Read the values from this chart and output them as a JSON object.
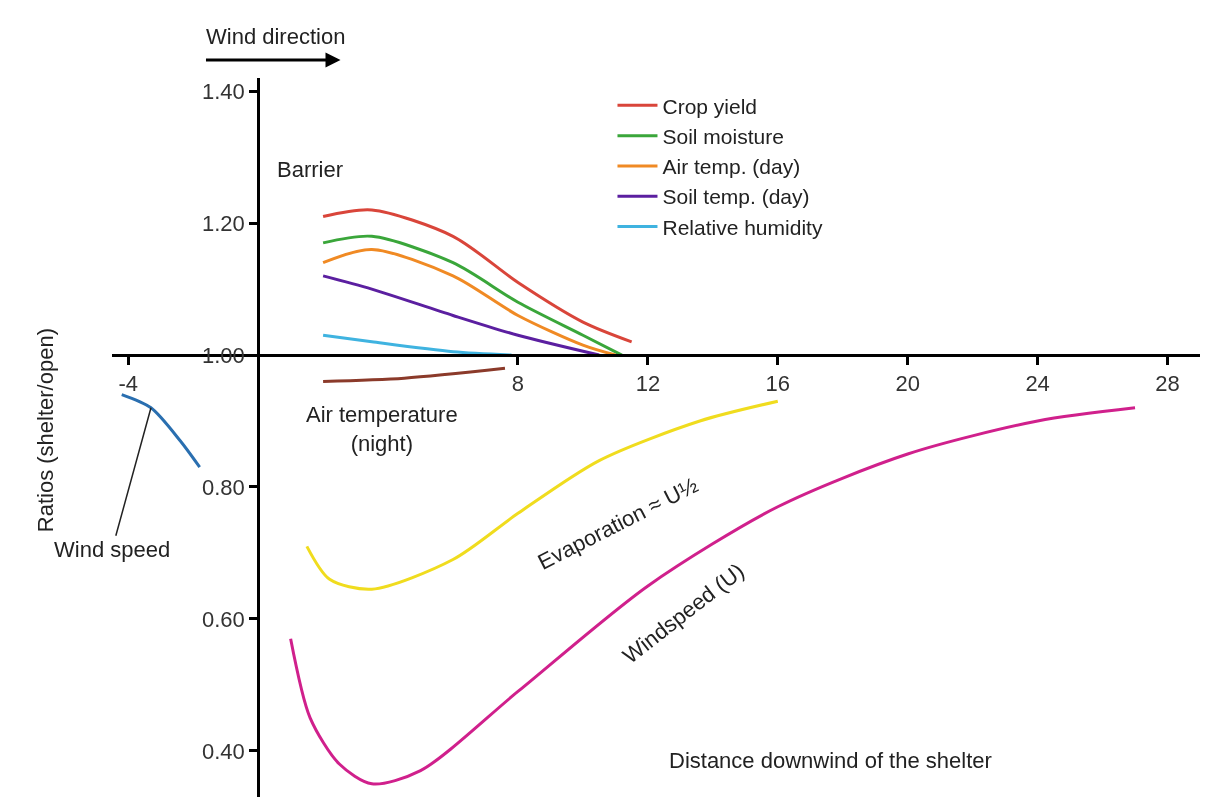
{
  "chart_data": {
    "type": "line",
    "ylabel": "Ratios (shelter/open)",
    "xlabel": "Distance downwind of the shelter",
    "xlim": [
      -4.5,
      29
    ],
    "xticks": [
      -4,
      8,
      12,
      16,
      20,
      24,
      28
    ],
    "ylim": [
      0.33,
      1.42
    ],
    "yticks": [
      {
        "value": 0.4,
        "label": "0.40"
      },
      {
        "value": 0.6,
        "label": "0.60"
      },
      {
        "value": 0.8,
        "label": "0.80"
      },
      {
        "value": 1.0,
        "label": "1.00"
      },
      {
        "value": 1.2,
        "label": "1.20"
      },
      {
        "value": 1.4,
        "label": "1.40"
      }
    ],
    "legend": "top right",
    "marker": "none",
    "line_style": "solid",
    "series": [
      {
        "name": "Crop yield",
        "color": "#d9453a",
        "x": [
          2,
          3.5,
          6,
          8,
          10,
          11.5
        ],
        "values": [
          1.21,
          1.22,
          1.18,
          1.11,
          1.05,
          1.02
        ]
      },
      {
        "name": "Soil moisture",
        "color": "#3aa63a",
        "x": [
          2,
          3.5,
          6,
          8,
          10,
          11.2
        ],
        "values": [
          1.17,
          1.18,
          1.14,
          1.08,
          1.03,
          1.0
        ]
      },
      {
        "name": "Air temp. (day)",
        "color": "#f08a24",
        "x": [
          2,
          3.5,
          6,
          8,
          10,
          11
        ],
        "values": [
          1.14,
          1.16,
          1.12,
          1.06,
          1.015,
          1.0
        ]
      },
      {
        "name": "Soil temp. (day)",
        "color": "#5b1fa0",
        "x": [
          2,
          3.5,
          6,
          8,
          10.5
        ],
        "values": [
          1.12,
          1.1,
          1.06,
          1.03,
          1.0
        ]
      },
      {
        "name": "Relative humidity",
        "color": "#3fb3e0",
        "x": [
          2,
          3.5,
          6,
          7.8
        ],
        "values": [
          1.03,
          1.02,
          1.005,
          1.0
        ]
      },
      {
        "color": "#8b3a2a",
        "x": [
          2,
          4.5,
          7.6
        ],
        "values": [
          0.96,
          0.965,
          0.98
        ]
      },
      {
        "color": "#2a6fb0",
        "x": [
          -4.2,
          -3.3,
          -2.4,
          -1.8
        ],
        "values": [
          0.94,
          0.92,
          0.87,
          0.83
        ]
      },
      {
        "color": "#f0dc1e",
        "x": [
          1.5,
          2.2,
          3.5,
          6,
          8,
          10.5,
          13.6,
          16
        ],
        "values": [
          0.71,
          0.66,
          0.645,
          0.69,
          0.76,
          0.84,
          0.9,
          0.93
        ]
      },
      {
        "color": "#d0208c",
        "x": [
          1,
          1.6,
          2.5,
          3.5,
          5,
          8,
          12,
          16,
          20,
          24,
          27
        ],
        "values": [
          0.57,
          0.45,
          0.38,
          0.35,
          0.37,
          0.49,
          0.65,
          0.77,
          0.85,
          0.9,
          0.92
        ]
      }
    ],
    "annotations": [
      "Wind direction",
      "Barrier",
      {
        "text": "Air temperature\n(night)",
        "x": 3.5,
        "y": 0.96
      },
      {
        "text": "Wind speed",
        "x": -3.3,
        "y": 0.92
      },
      "Evaporation ≈ U½",
      "Windspeed (U)"
    ]
  }
}
